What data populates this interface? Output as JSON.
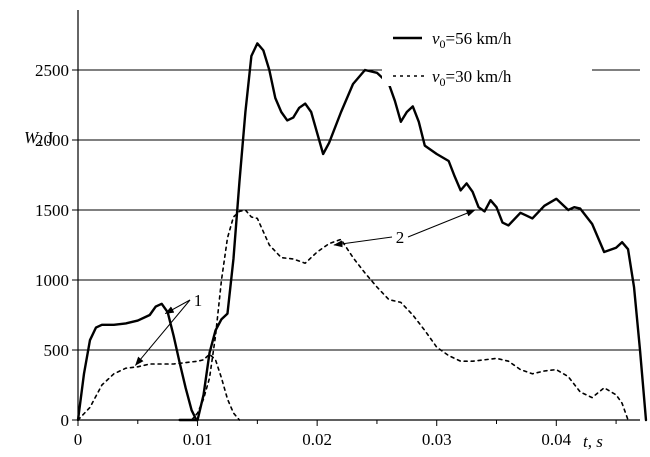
{
  "chart_data": {
    "type": "line",
    "xlabel": "t, s",
    "ylabel": "W, J",
    "xlim": [
      0,
      0.047
    ],
    "ylim": [
      0,
      2900
    ],
    "x_ticks": [
      "0",
      "0.01",
      "0.02",
      "0.03",
      "0.04"
    ],
    "y_ticks": [
      "0",
      "500",
      "1000",
      "1500",
      "2000",
      "2500"
    ],
    "grid": "horizontal",
    "legend_position": "top-right",
    "colors": {
      "line": "#000000",
      "grid": "#000000"
    },
    "legend": [
      {
        "var": "v",
        "sub": "0",
        "rest": "=56 km/h",
        "style": "solid"
      },
      {
        "var": "v",
        "sub": "0",
        "rest": "=30 km/h",
        "style": "dashed"
      }
    ],
    "annotations": [
      {
        "text": "1",
        "points_to": [
          [
            0.0073,
            760
          ],
          [
            0.0048,
            390
          ]
        ]
      },
      {
        "text": "2",
        "points_to": [
          [
            0.0332,
            1500
          ],
          [
            0.0214,
            1250
          ]
        ]
      }
    ],
    "series": [
      {
        "name": "v0=56 km/h",
        "style": "solid",
        "segments": [
          [
            [
              0,
              0
            ],
            [
              0.0005,
              330
            ],
            [
              0.001,
              570
            ],
            [
              0.0015,
              660
            ],
            [
              0.002,
              680
            ],
            [
              0.003,
              680
            ],
            [
              0.004,
              690
            ],
            [
              0.005,
              710
            ],
            [
              0.006,
              750
            ],
            [
              0.0065,
              810
            ],
            [
              0.007,
              830
            ],
            [
              0.0075,
              770
            ],
            [
              0.008,
              600
            ],
            [
              0.0085,
              410
            ],
            [
              0.009,
              230
            ],
            [
              0.0095,
              70
            ],
            [
              0.0099,
              0
            ]
          ],
          [
            [
              0.0085,
              0
            ],
            [
              0.0095,
              0
            ],
            [
              0.01,
              0
            ],
            [
              0.0105,
              180
            ],
            [
              0.011,
              480
            ],
            [
              0.0115,
              640
            ],
            [
              0.012,
              720
            ],
            [
              0.0125,
              760
            ],
            [
              0.013,
              1150
            ],
            [
              0.0135,
              1700
            ],
            [
              0.014,
              2200
            ],
            [
              0.0145,
              2600
            ],
            [
              0.015,
              2690
            ],
            [
              0.0155,
              2640
            ],
            [
              0.016,
              2500
            ],
            [
              0.0165,
              2300
            ],
            [
              0.017,
              2200
            ],
            [
              0.0175,
              2140
            ],
            [
              0.018,
              2160
            ],
            [
              0.0185,
              2230
            ],
            [
              0.019,
              2260
            ],
            [
              0.0195,
              2200
            ],
            [
              0.02,
              2050
            ],
            [
              0.0205,
              1900
            ],
            [
              0.021,
              1980
            ],
            [
              0.022,
              2200
            ],
            [
              0.023,
              2400
            ],
            [
              0.024,
              2500
            ],
            [
              0.025,
              2480
            ],
            [
              0.026,
              2400
            ],
            [
              0.0265,
              2280
            ],
            [
              0.027,
              2130
            ],
            [
              0.0275,
              2200
            ],
            [
              0.028,
              2240
            ],
            [
              0.0285,
              2130
            ],
            [
              0.029,
              1960
            ],
            [
              0.03,
              1900
            ],
            [
              0.031,
              1850
            ],
            [
              0.0315,
              1740
            ],
            [
              0.032,
              1640
            ],
            [
              0.0325,
              1690
            ],
            [
              0.033,
              1630
            ],
            [
              0.0335,
              1520
            ],
            [
              0.034,
              1490
            ],
            [
              0.0345,
              1570
            ],
            [
              0.035,
              1520
            ],
            [
              0.0355,
              1410
            ],
            [
              0.036,
              1390
            ],
            [
              0.037,
              1480
            ],
            [
              0.0375,
              1460
            ],
            [
              0.038,
              1440
            ],
            [
              0.039,
              1530
            ],
            [
              0.04,
              1580
            ],
            [
              0.041,
              1500
            ],
            [
              0.0415,
              1520
            ],
            [
              0.042,
              1510
            ],
            [
              0.043,
              1400
            ],
            [
              0.044,
              1200
            ],
            [
              0.045,
              1230
            ],
            [
              0.0455,
              1270
            ],
            [
              0.046,
              1220
            ],
            [
              0.0465,
              950
            ],
            [
              0.047,
              500
            ],
            [
              0.0475,
              0
            ]
          ]
        ]
      },
      {
        "name": "v0=30 km/h",
        "style": "dashed",
        "segments": [
          [
            [
              0,
              0
            ],
            [
              0.001,
              90
            ],
            [
              0.002,
              250
            ],
            [
              0.003,
              330
            ],
            [
              0.004,
              370
            ],
            [
              0.005,
              380
            ],
            [
              0.006,
              400
            ],
            [
              0.007,
              400
            ],
            [
              0.008,
              400
            ],
            [
              0.009,
              410
            ],
            [
              0.01,
              420
            ],
            [
              0.0105,
              430
            ],
            [
              0.011,
              470
            ],
            [
              0.0115,
              430
            ],
            [
              0.012,
              300
            ],
            [
              0.0125,
              150
            ],
            [
              0.013,
              50
            ],
            [
              0.0135,
              0
            ]
          ],
          [
            [
              0.0095,
              0
            ],
            [
              0.01,
              50
            ],
            [
              0.0105,
              150
            ],
            [
              0.011,
              300
            ],
            [
              0.0115,
              600
            ],
            [
              0.012,
              1000
            ],
            [
              0.0125,
              1300
            ],
            [
              0.013,
              1450
            ],
            [
              0.0135,
              1490
            ],
            [
              0.014,
              1500
            ],
            [
              0.0145,
              1450
            ],
            [
              0.015,
              1440
            ],
            [
              0.016,
              1250
            ],
            [
              0.017,
              1160
            ],
            [
              0.018,
              1150
            ],
            [
              0.019,
              1120
            ],
            [
              0.02,
              1200
            ],
            [
              0.021,
              1260
            ],
            [
              0.022,
              1290
            ],
            [
              0.023,
              1160
            ],
            [
              0.024,
              1050
            ],
            [
              0.025,
              950
            ],
            [
              0.026,
              860
            ],
            [
              0.027,
              840
            ],
            [
              0.028,
              750
            ],
            [
              0.029,
              640
            ],
            [
              0.03,
              520
            ],
            [
              0.031,
              460
            ],
            [
              0.032,
              420
            ],
            [
              0.033,
              420
            ],
            [
              0.034,
              430
            ],
            [
              0.035,
              440
            ],
            [
              0.036,
              420
            ],
            [
              0.037,
              360
            ],
            [
              0.038,
              330
            ],
            [
              0.039,
              350
            ],
            [
              0.04,
              360
            ],
            [
              0.041,
              310
            ],
            [
              0.042,
              200
            ],
            [
              0.043,
              160
            ],
            [
              0.044,
              230
            ],
            [
              0.045,
              180
            ],
            [
              0.0455,
              120
            ],
            [
              0.046,
              0
            ]
          ]
        ]
      }
    ]
  }
}
